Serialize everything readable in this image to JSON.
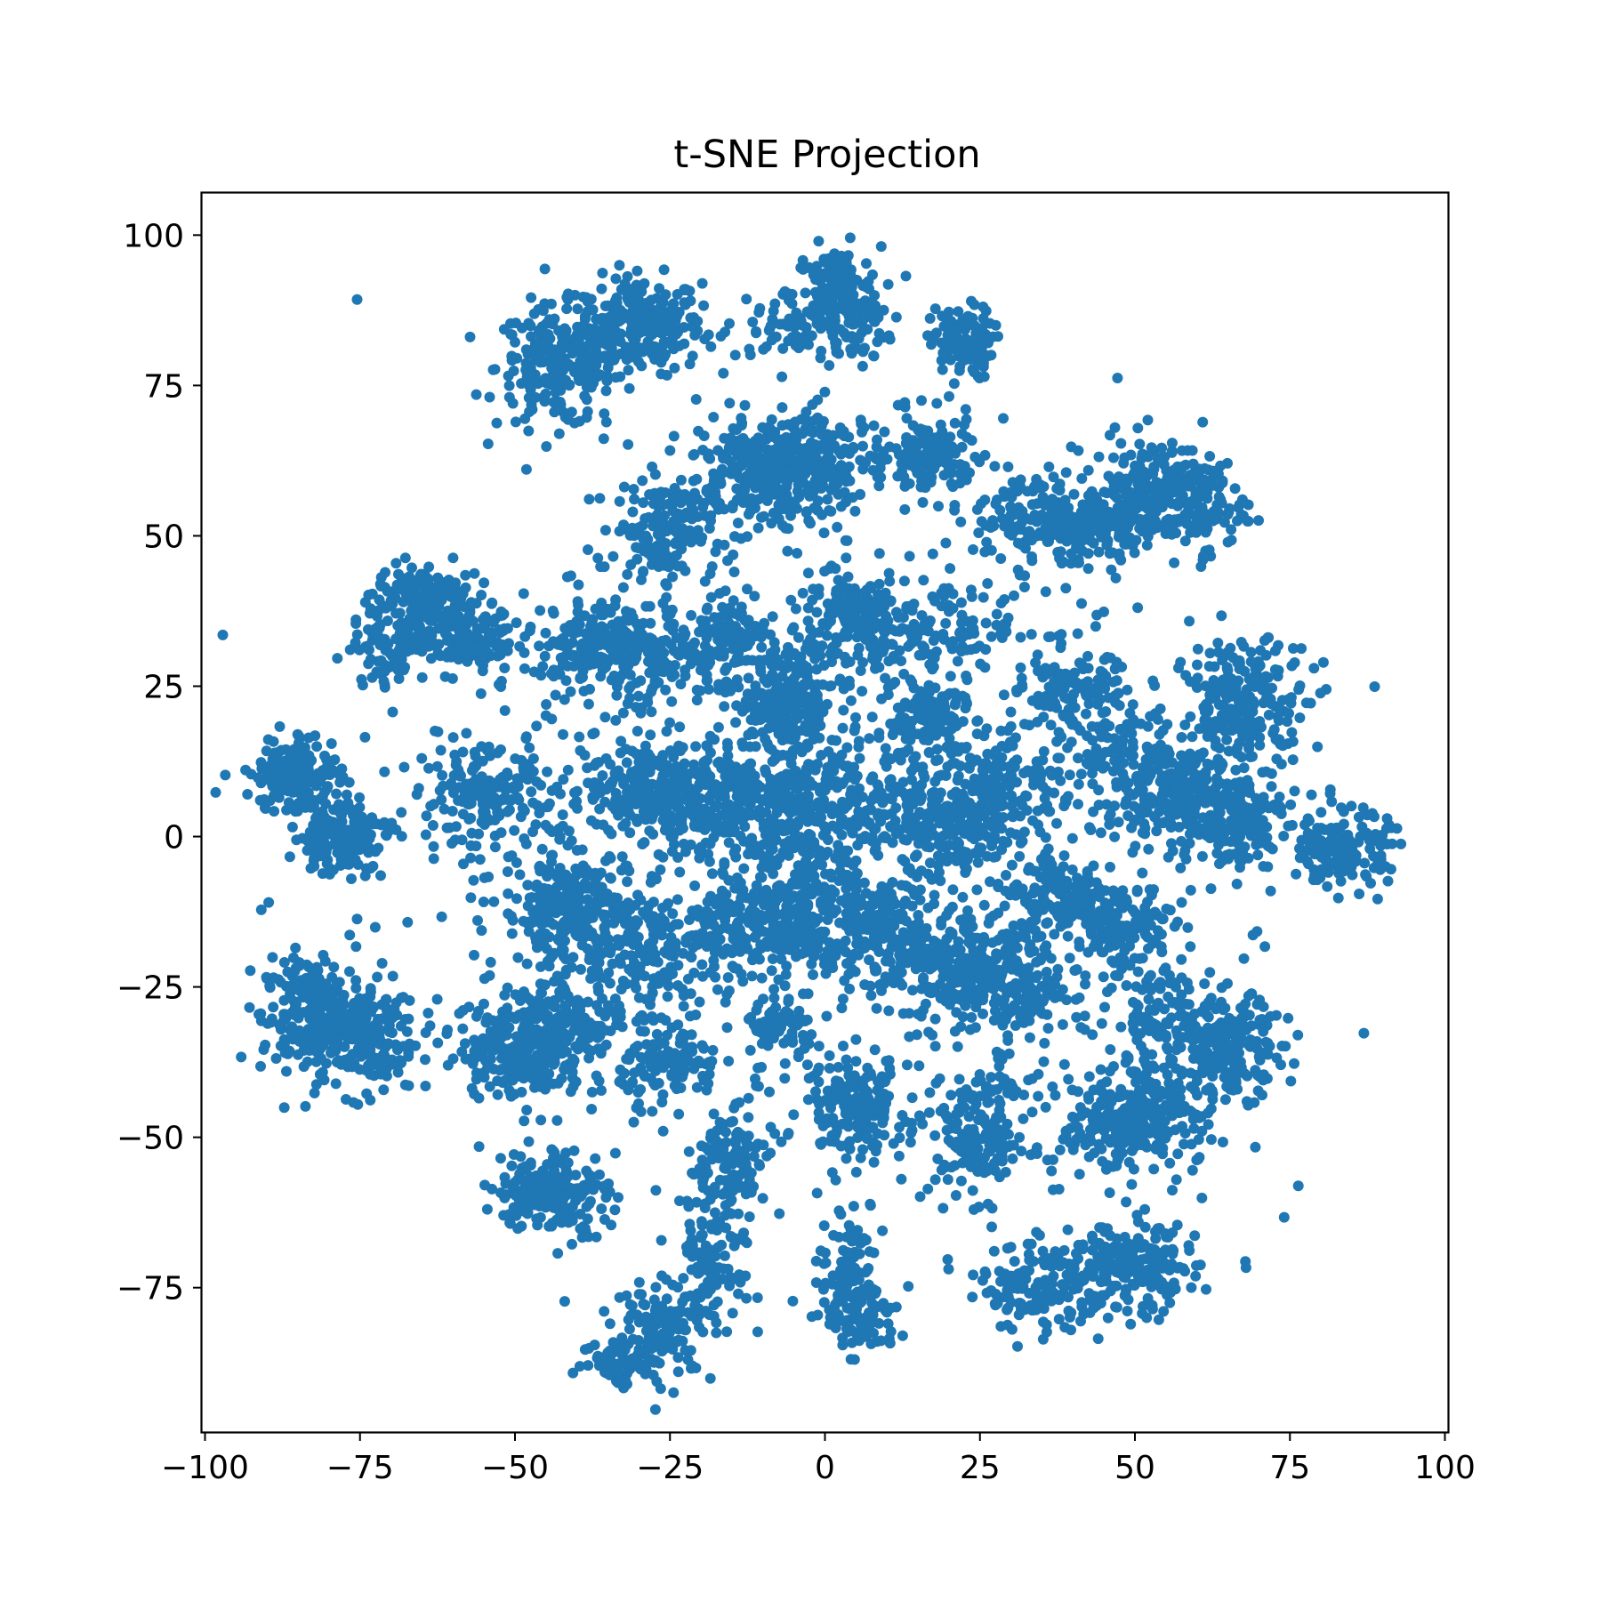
{
  "chart_data": {
    "type": "scatter",
    "title": "t-SNE Projection",
    "xlabel": "",
    "ylabel": "",
    "xlim": [
      -100.5,
      100.5
    ],
    "ylim": [
      -99,
      107
    ],
    "x_ticks": [
      -100,
      -75,
      -50,
      -25,
      0,
      25,
      50,
      75,
      100
    ],
    "y_ticks": [
      -75,
      -50,
      -25,
      0,
      25,
      50,
      75,
      100
    ],
    "x_tick_labels": [
      "−100",
      "−75",
      "−50",
      "−25",
      "0",
      "25",
      "50",
      "75",
      "100"
    ],
    "y_tick_labels": [
      "−75",
      "−50",
      "−25",
      "0",
      "25",
      "50",
      "75",
      "100"
    ],
    "grid": false,
    "legend": "none",
    "series": [
      {
        "color": "#1f77b4",
        "clusters": [
          {
            "cx": -30,
            "cy": 85,
            "sx": 5,
            "sy": 4,
            "n": 260
          },
          {
            "cx": -43,
            "cy": 78,
            "sx": 5,
            "sy": 5,
            "n": 220
          },
          {
            "cx": 2,
            "cy": 90,
            "sx": 3.5,
            "sy": 4,
            "n": 170
          },
          {
            "cx": -6,
            "cy": 85,
            "sx": 5,
            "sy": 3,
            "n": 60
          },
          {
            "cx": 5,
            "cy": 84,
            "sx": 3,
            "sy": 3,
            "n": 40
          },
          {
            "cx": 22,
            "cy": 82,
            "sx": 2.5,
            "sy": 3,
            "n": 110
          },
          {
            "cx": -10,
            "cy": 63,
            "sx": 5,
            "sy": 3,
            "n": 160
          },
          {
            "cx": 0,
            "cy": 63,
            "sx": 5,
            "sy": 4,
            "n": 150
          },
          {
            "cx": -6,
            "cy": 57,
            "sx": 4,
            "sy": 4,
            "n": 80
          },
          {
            "cx": 17,
            "cy": 63,
            "sx": 3.5,
            "sy": 3.5,
            "n": 130
          },
          {
            "cx": -26,
            "cy": 51,
            "sx": 4,
            "sy": 4,
            "n": 150
          },
          {
            "cx": -17,
            "cy": 57,
            "sx": 4,
            "sy": 2,
            "n": 50
          },
          {
            "cx": 34,
            "cy": 53,
            "sx": 5,
            "sy": 4,
            "n": 150
          },
          {
            "cx": 45,
            "cy": 52,
            "sx": 4,
            "sy": 3,
            "n": 120
          },
          {
            "cx": 53,
            "cy": 58,
            "sx": 5,
            "sy": 4,
            "n": 180
          },
          {
            "cx": 60,
            "cy": 55,
            "sx": 4,
            "sy": 4,
            "n": 100
          },
          {
            "cx": -65,
            "cy": 40,
            "sx": 4,
            "sy": 3,
            "n": 120
          },
          {
            "cx": -58,
            "cy": 33,
            "sx": 4,
            "sy": 3,
            "n": 150
          },
          {
            "cx": -70,
            "cy": 33,
            "sx": 3,
            "sy": 4,
            "n": 100
          },
          {
            "cx": -38,
            "cy": 32,
            "sx": 4,
            "sy": 4,
            "n": 150
          },
          {
            "cx": -28,
            "cy": 30,
            "sx": 4,
            "sy": 4,
            "n": 110
          },
          {
            "cx": -15,
            "cy": 33,
            "sx": 3,
            "sy": 3,
            "n": 90
          },
          {
            "cx": 5,
            "cy": 36,
            "sx": 4,
            "sy": 4,
            "n": 150
          },
          {
            "cx": 20,
            "cy": 35,
            "sx": 8,
            "sy": 3,
            "n": 100
          },
          {
            "cx": -6,
            "cy": 22,
            "sx": 4,
            "sy": 5,
            "n": 230
          },
          {
            "cx": 17,
            "cy": 20,
            "sx": 3,
            "sy": 3,
            "n": 120
          },
          {
            "cx": 40,
            "cy": 24,
            "sx": 4,
            "sy": 3,
            "n": 110
          },
          {
            "cx": 68,
            "cy": 22,
            "sx": 5,
            "sy": 5,
            "n": 220
          },
          {
            "cx": -85,
            "cy": 10,
            "sx": 3.5,
            "sy": 3.5,
            "n": 170
          },
          {
            "cx": -78,
            "cy": 0,
            "sx": 4,
            "sy": 3,
            "n": 150
          },
          {
            "cx": -55,
            "cy": 6,
            "sx": 5,
            "sy": 4,
            "n": 170
          },
          {
            "cx": -27,
            "cy": 8,
            "sx": 6,
            "sy": 4,
            "n": 250
          },
          {
            "cx": -15,
            "cy": 5,
            "sx": 4,
            "sy": 4,
            "n": 140
          },
          {
            "cx": -4,
            "cy": 5,
            "sx": 4,
            "sy": 4,
            "n": 150
          },
          {
            "cx": 10,
            "cy": 3,
            "sx": 6,
            "sy": 5,
            "n": 130
          },
          {
            "cx": 28,
            "cy": 8,
            "sx": 5,
            "sy": 4,
            "n": 160
          },
          {
            "cx": 22,
            "cy": 0,
            "sx": 4,
            "sy": 3,
            "n": 100
          },
          {
            "cx": 55,
            "cy": 8,
            "sx": 6,
            "sy": 4,
            "n": 200
          },
          {
            "cx": 65,
            "cy": 3,
            "sx": 5,
            "sy": 4,
            "n": 180
          },
          {
            "cx": 84,
            "cy": -2,
            "sx": 3.5,
            "sy": 3,
            "n": 160
          },
          {
            "cx": 47,
            "cy": 15,
            "sx": 4,
            "sy": 4,
            "n": 60
          },
          {
            "cx": -42,
            "cy": -12,
            "sx": 5,
            "sy": 5,
            "n": 230
          },
          {
            "cx": -30,
            "cy": -20,
            "sx": 4,
            "sy": 5,
            "n": 110
          },
          {
            "cx": -15,
            "cy": -15,
            "sx": 5,
            "sy": 4,
            "n": 140
          },
          {
            "cx": -2,
            "cy": -12,
            "sx": 5,
            "sy": 5,
            "n": 200
          },
          {
            "cx": 10,
            "cy": -15,
            "sx": 4,
            "sy": 4,
            "n": 110
          },
          {
            "cx": 20,
            "cy": -22,
            "sx": 5,
            "sy": 4,
            "n": 170
          },
          {
            "cx": 30,
            "cy": -25,
            "sx": 4,
            "sy": 5,
            "n": 170
          },
          {
            "cx": 38,
            "cy": -10,
            "sx": 5,
            "sy": 4,
            "n": 150
          },
          {
            "cx": 48,
            "cy": -15,
            "sx": 4,
            "sy": 4,
            "n": 120
          },
          {
            "cx": -83,
            "cy": -30,
            "sx": 4,
            "sy": 5,
            "n": 220
          },
          {
            "cx": -74,
            "cy": -33,
            "sx": 4,
            "sy": 5,
            "n": 180
          },
          {
            "cx": -49,
            "cy": -35,
            "sx": 5,
            "sy": 4,
            "n": 260
          },
          {
            "cx": -40,
            "cy": -30,
            "sx": 4,
            "sy": 4,
            "n": 100
          },
          {
            "cx": -25,
            "cy": -38,
            "sx": 4,
            "sy": 3,
            "n": 110
          },
          {
            "cx": -7,
            "cy": -32,
            "sx": 3,
            "sy": 2,
            "n": 60
          },
          {
            "cx": 5,
            "cy": -45,
            "sx": 4,
            "sy": 4,
            "n": 150
          },
          {
            "cx": 25,
            "cy": -50,
            "sx": 4,
            "sy": 5,
            "n": 170
          },
          {
            "cx": 48,
            "cy": -48,
            "sx": 5,
            "sy": 4,
            "n": 200
          },
          {
            "cx": 55,
            "cy": -45,
            "sx": 4,
            "sy": 5,
            "n": 100
          },
          {
            "cx": 66,
            "cy": -35,
            "sx": 4,
            "sy": 4,
            "n": 170
          },
          {
            "cx": 55,
            "cy": -30,
            "sx": 4,
            "sy": 4,
            "n": 100
          },
          {
            "cx": -44,
            "cy": -59,
            "sx": 4.5,
            "sy": 3.5,
            "n": 200
          },
          {
            "cx": -16,
            "cy": -55,
            "sx": 3,
            "sy": 5,
            "n": 130
          },
          {
            "cx": -19,
            "cy": -72,
            "sx": 3,
            "sy": 4,
            "n": 80
          },
          {
            "cx": -26,
            "cy": -82,
            "sx": 4,
            "sy": 4,
            "n": 130
          },
          {
            "cx": -33,
            "cy": -87,
            "sx": 3,
            "sy": 2,
            "n": 60
          },
          {
            "cx": 4,
            "cy": -70,
            "sx": 2.5,
            "sy": 5,
            "n": 80
          },
          {
            "cx": 6,
            "cy": -80,
            "sx": 3,
            "sy": 3,
            "n": 100
          },
          {
            "cx": 35,
            "cy": -75,
            "sx": 5,
            "sy": 3.5,
            "n": 160
          },
          {
            "cx": 50,
            "cy": -72,
            "sx": 5,
            "sy": 4,
            "n": 200
          },
          {
            "cx": 0,
            "cy": 0,
            "sx": 32,
            "sy": 28,
            "n": 1100
          }
        ]
      }
    ]
  }
}
